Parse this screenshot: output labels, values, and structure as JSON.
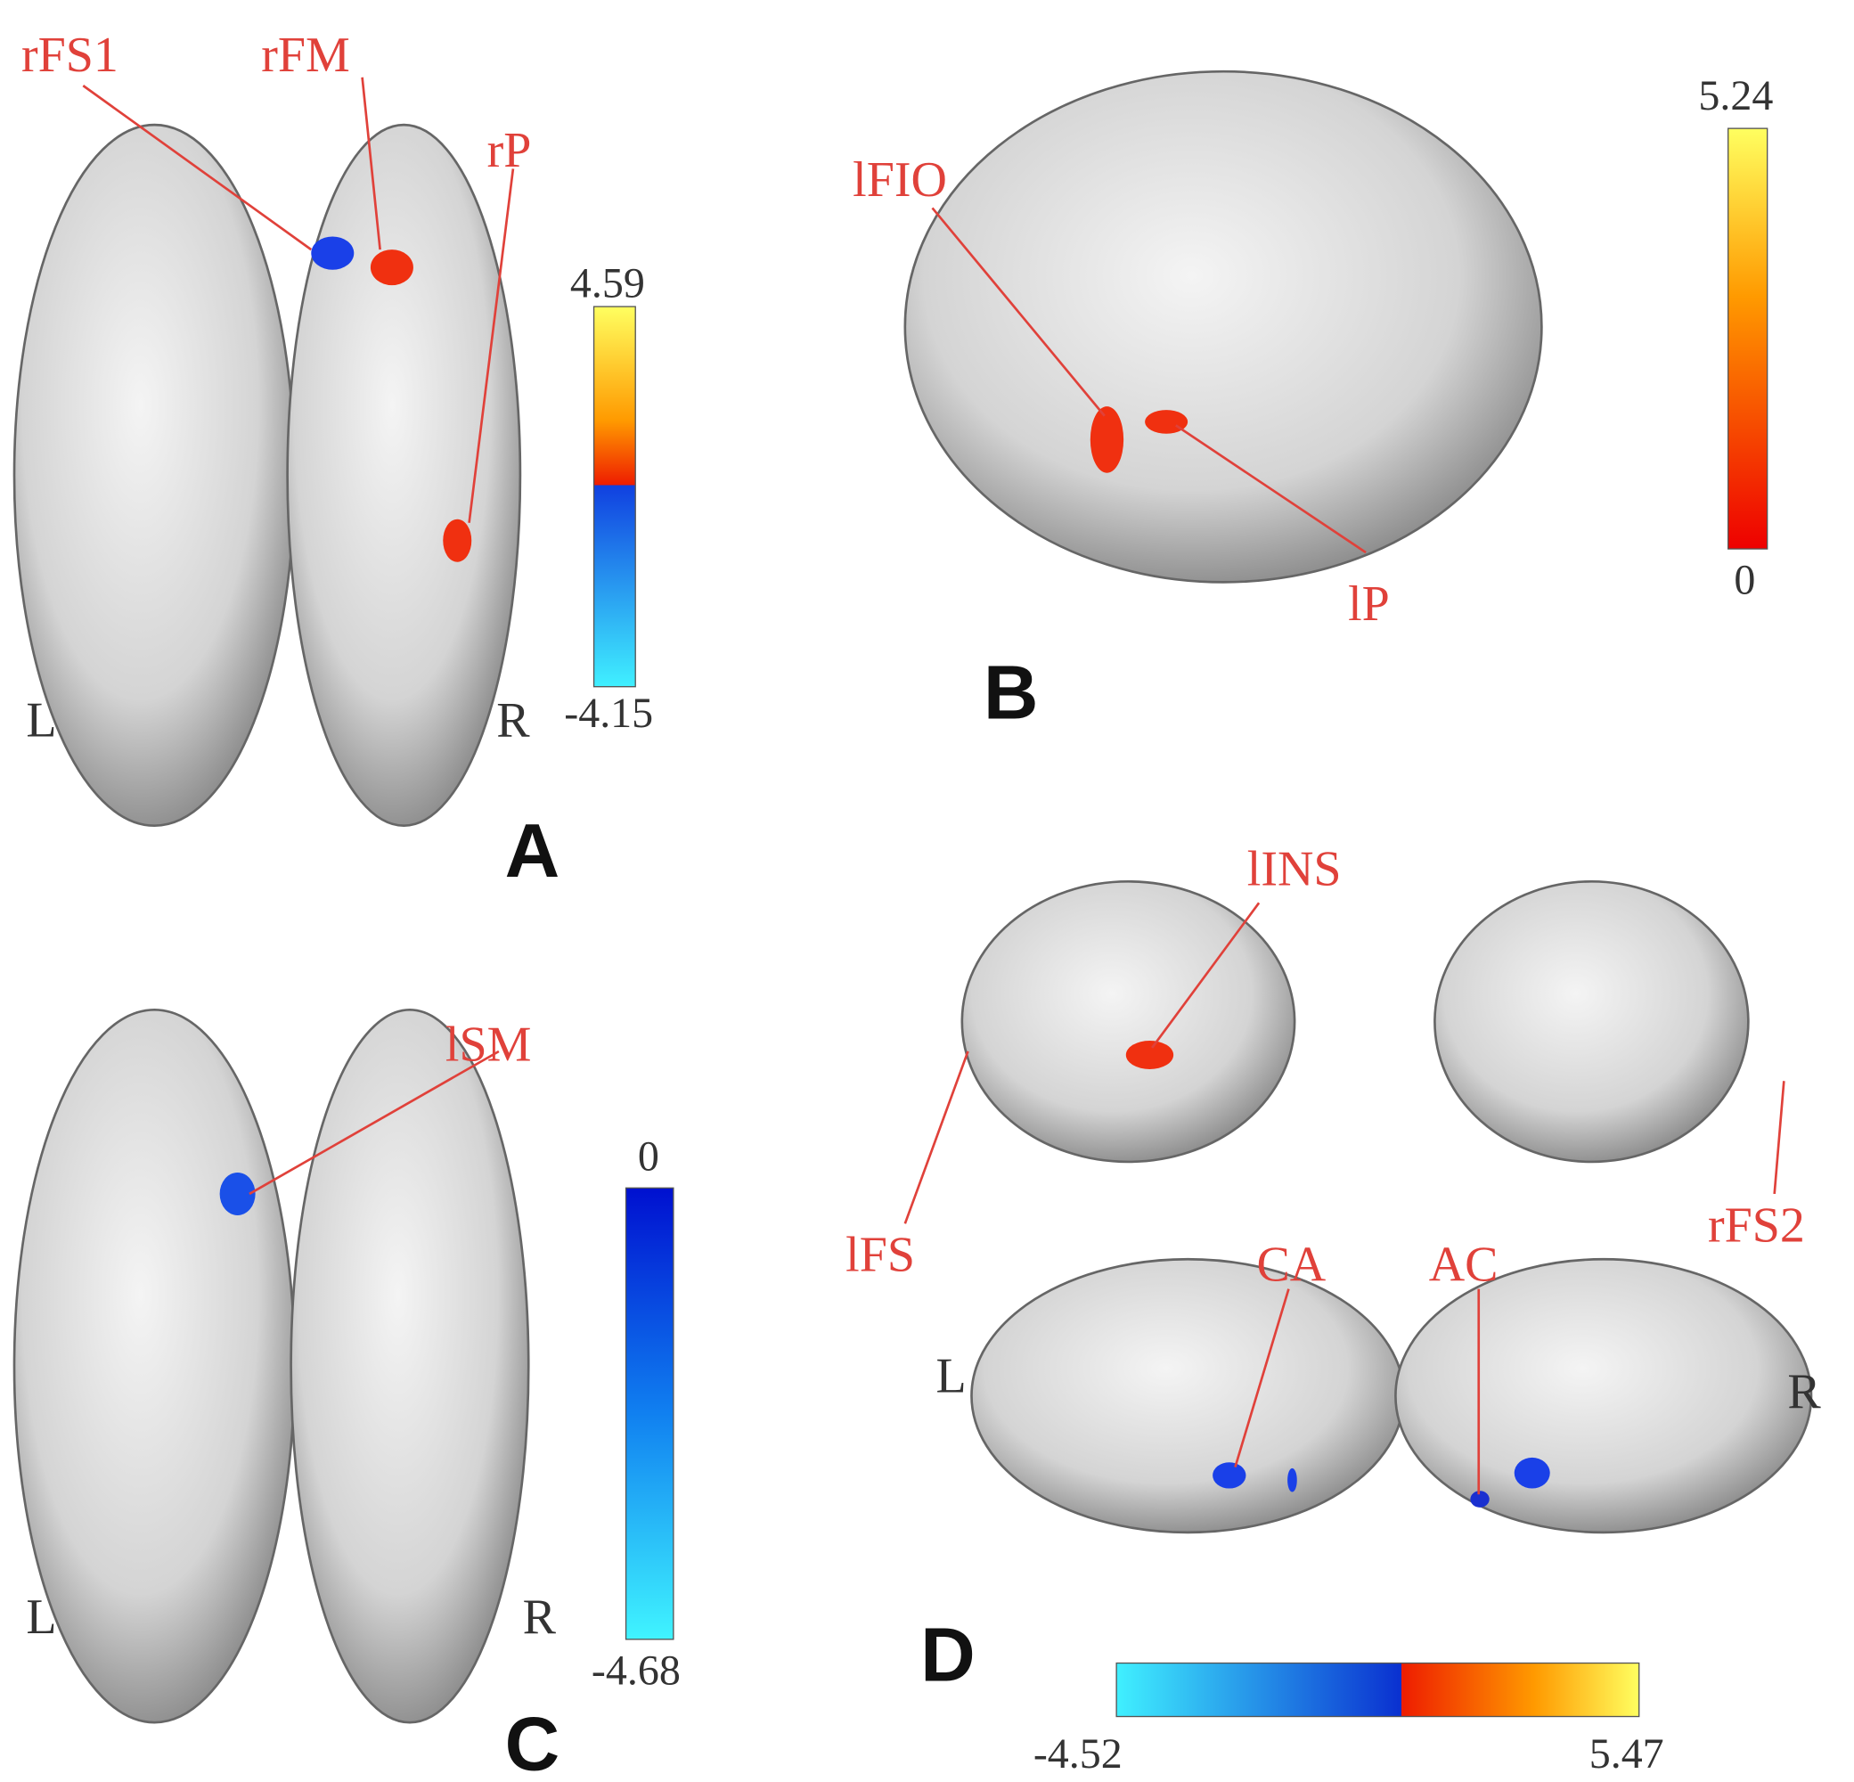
{
  "panels": [
    {
      "letter": "A",
      "hemisphere_labels": [
        "L",
        "R"
      ],
      "regions": [
        "rFS1",
        "rFM",
        "rP"
      ],
      "colorbar": {
        "max": "4.59",
        "min": "-4.15"
      }
    },
    {
      "letter": "B",
      "regions": [
        "lFIO",
        "lP"
      ],
      "colorbar": {
        "max": "5.24",
        "min": "0"
      }
    },
    {
      "letter": "C",
      "hemisphere_labels": [
        "L",
        "R"
      ],
      "regions": [
        "lSM"
      ],
      "colorbar": {
        "max": "0",
        "min": "-4.68"
      }
    },
    {
      "letter": "D",
      "hemisphere_labels": [
        "L",
        "R"
      ],
      "regions": [
        "lINS",
        "lFS",
        "rFS2",
        "CA",
        "AC"
      ],
      "colorbar": {
        "min": "-4.52",
        "max": "5.47"
      }
    }
  ]
}
